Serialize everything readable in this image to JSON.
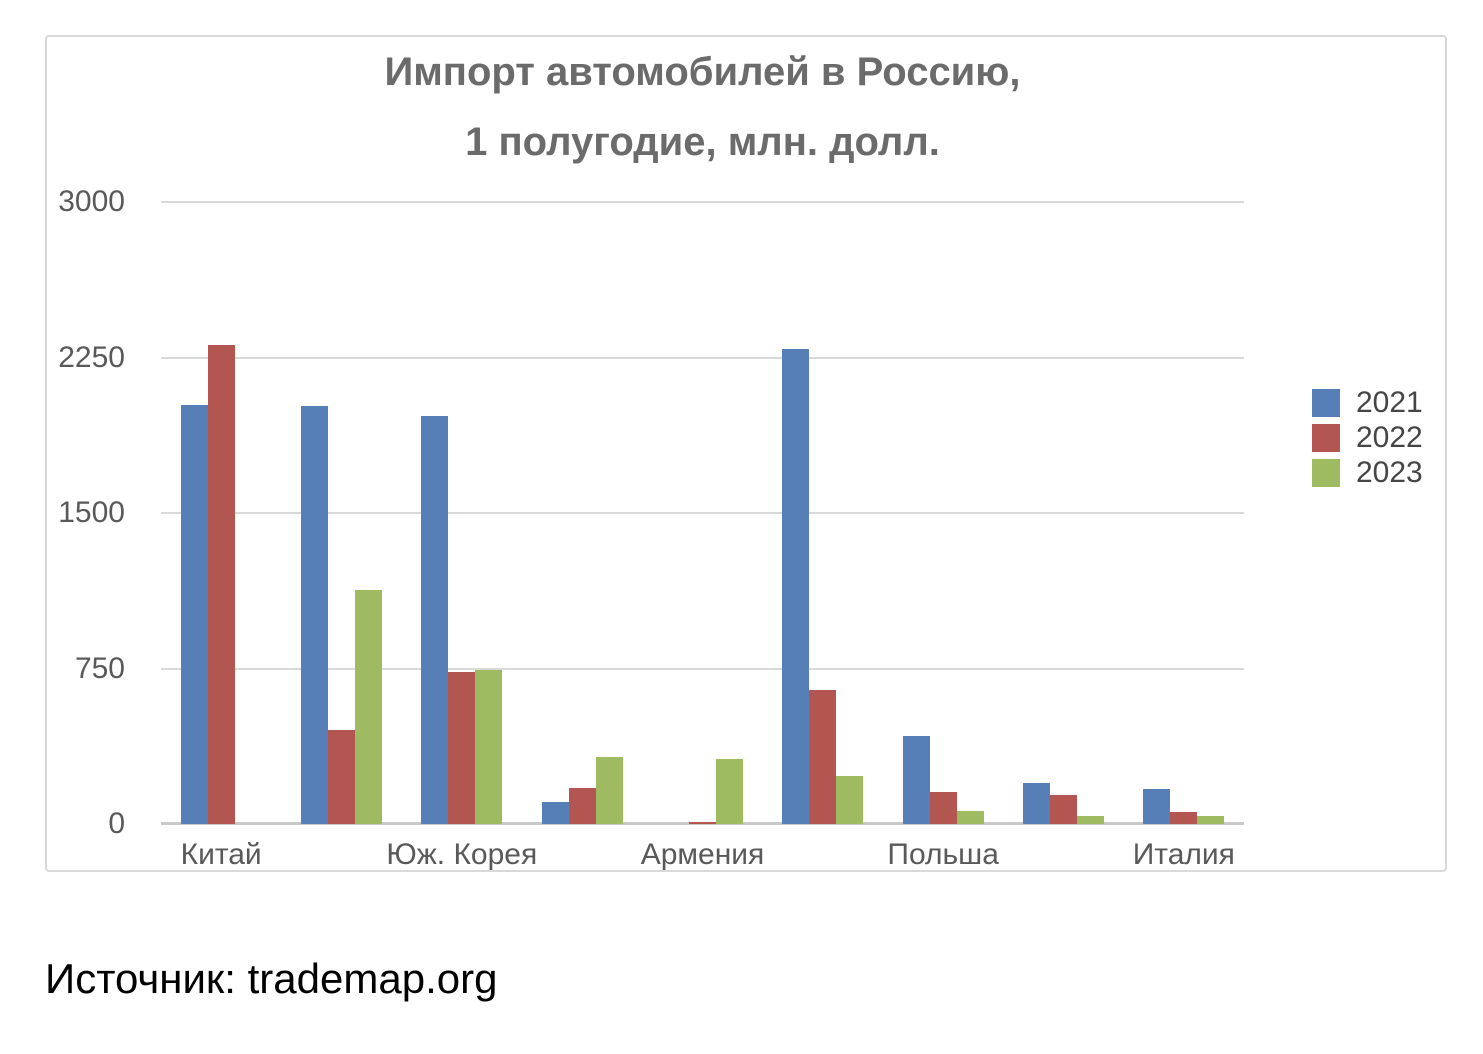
{
  "title": {
    "line1": "Импорт автомобилей в Россию,",
    "line2": "1 полугодие, млн. долл."
  },
  "source_text": "Источник: trademap.org",
  "chart_data": {
    "type": "bar",
    "title": "Импорт автомобилей в Россию, 1 полугодие, млн. долл.",
    "units": "млн. долл.",
    "xlabel": "",
    "ylabel": "",
    "ylim": [
      0,
      3000
    ],
    "yticks": [
      0,
      750,
      1500,
      2250,
      3000
    ],
    "grid": true,
    "legend_position": "right",
    "categories": [
      "Китай",
      "",
      "Юж. Корея",
      "",
      "Армения",
      "",
      "Польша",
      "",
      "Италия"
    ],
    "visible_category_labels": [
      "Китай",
      "Юж. Корея",
      "Армения",
      "Польша",
      "Италия"
    ],
    "series": [
      {
        "name": "2021",
        "color": "#567FB8",
        "values": [
          2020,
          2015,
          1970,
          105,
          null,
          2290,
          425,
          200,
          170
        ]
      },
      {
        "name": "2022",
        "color": "#B35551",
        "values": [
          2310,
          455,
          735,
          175,
          10,
          645,
          155,
          140,
          60
        ]
      },
      {
        "name": "2023",
        "color": "#9FBB61",
        "values": [
          null,
          1130,
          745,
          325,
          315,
          230,
          65,
          40,
          40
        ]
      }
    ]
  },
  "style": {
    "gridline_color": "#D9D9D9",
    "axis_line_color": "#C9C9C9",
    "tick_label_color": "#595959",
    "title_color": "#6B6B6B",
    "legend_label_color": "#454545",
    "chart_border_color": "#D9D9D9"
  }
}
